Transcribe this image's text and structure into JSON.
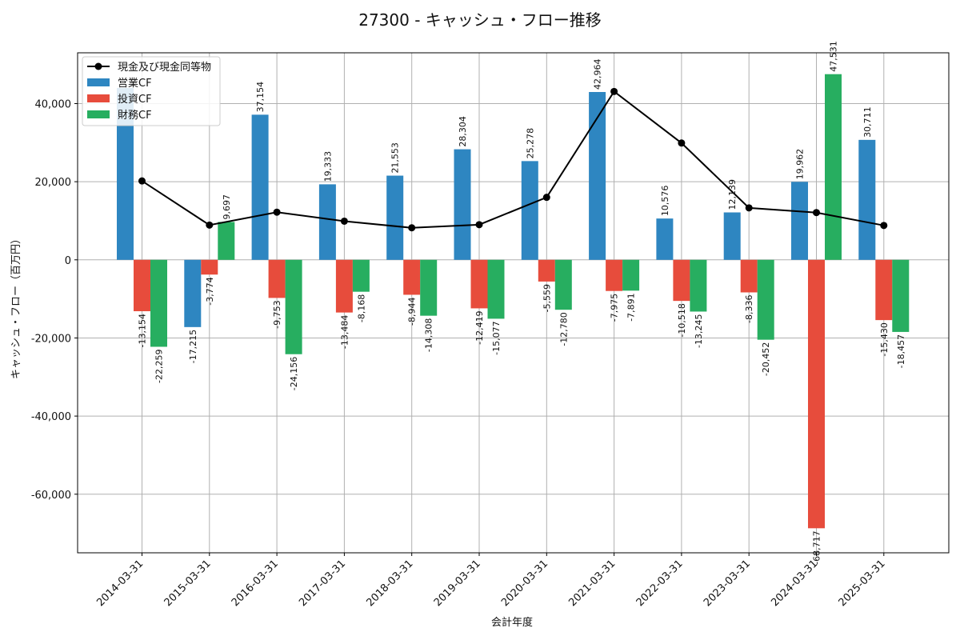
{
  "chart_data": {
    "type": "bar",
    "title": "27300 - キャッシュ・フロー推移",
    "xlabel": "会計年度",
    "ylabel": "キャッシュ・フロー（百万円）",
    "ylim": [
      -75000,
      53000
    ],
    "yticks": [
      -60000,
      -40000,
      -20000,
      0,
      20000,
      40000
    ],
    "ytick_labels": [
      "-60,000",
      "-40,000",
      "-20,000",
      "0",
      "20,000",
      "40,000"
    ],
    "grid": true,
    "legend_position": "top-left",
    "categories": [
      "2014-03-31",
      "2015-03-31",
      "2016-03-31",
      "2017-03-31",
      "2018-03-31",
      "2019-03-31",
      "2020-03-31",
      "2021-03-31",
      "2022-03-31",
      "2023-03-31",
      "2024-03-31",
      "2025-03-31"
    ],
    "series": [
      {
        "name": "営業CF",
        "kind": "bar",
        "color": "#2e86c1",
        "values": [
          44000,
          -17215,
          37154,
          19333,
          21553,
          28304,
          25278,
          42964,
          10576,
          12139,
          19962,
          30711
        ],
        "labels": [
          "",
          "-17,215",
          "37,154",
          "19,333",
          "21,553",
          "28,304",
          "25,278",
          "42,964",
          "10,576",
          "12,139",
          "19,962",
          "30,711"
        ]
      },
      {
        "name": "投資CF",
        "kind": "bar",
        "color": "#e74c3c",
        "values": [
          -13154,
          -3774,
          -9753,
          -13484,
          -8944,
          -12419,
          -5559,
          -7975,
          -10518,
          -8336,
          -68717,
          -15430
        ],
        "labels": [
          "-13,154",
          "-3,774",
          "-9,753",
          "-13,484",
          "-8,944",
          "-12,419",
          "-5,559",
          "-7,975",
          "-10,518",
          "-8,336",
          "-68,717",
          "-15,430"
        ]
      },
      {
        "name": "財務CF",
        "kind": "bar",
        "color": "#27ae60",
        "values": [
          -22259,
          9697,
          -24156,
          -8168,
          -14308,
          -15077,
          -12780,
          -7891,
          -13245,
          -20452,
          47531,
          -18457
        ],
        "labels": [
          "-22,259",
          "9,697",
          "-24,156",
          "-8,168",
          "-14,308",
          "-15,077",
          "-12,780",
          "-7,891",
          "-13,245",
          "-20,452",
          "47,531",
          "-18,457"
        ]
      },
      {
        "name": "現金及び現金同等物",
        "kind": "line",
        "color": "#000000",
        "values": [
          20200,
          8900,
          12200,
          9900,
          8200,
          9000,
          16000,
          43100,
          29900,
          13300,
          12100,
          8800
        ]
      }
    ]
  }
}
